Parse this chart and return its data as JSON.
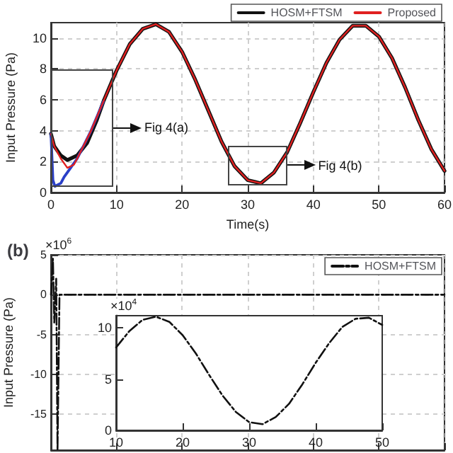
{
  "chart_data": [
    {
      "type": "line",
      "xlabel": "Time(s)",
      "ylabel": "Input Pressure (Pa)",
      "xlim": [
        0,
        60
      ],
      "ylim": [
        0,
        11
      ],
      "xticks": [
        0,
        10,
        20,
        30,
        40,
        50,
        60
      ],
      "yticks": [
        0,
        2,
        4,
        6,
        8,
        10
      ],
      "grid": true,
      "legend": "top right",
      "marker": "none",
      "line_style": "solid",
      "annotations": [
        "Fig 4(a)",
        "Fig 4(b)"
      ],
      "series": [
        {
          "name": "HOSM+FTSM",
          "color": "#111111",
          "x": [
            0,
            0.5,
            1.5,
            2.5,
            4,
            5.5,
            7,
            8,
            10,
            12,
            14,
            16,
            18,
            20,
            22,
            24,
            26,
            28,
            30,
            32,
            34,
            36,
            38,
            40,
            42,
            44,
            46,
            48,
            50,
            52,
            54,
            56,
            58,
            60
          ],
          "values": [
            3.8,
            3.0,
            2.4,
            2.1,
            2.4,
            3.2,
            4.7,
            5.9,
            7.9,
            9.6,
            10.6,
            10.9,
            10.4,
            9.1,
            7.3,
            5.3,
            3.3,
            1.7,
            0.8,
            0.6,
            1.3,
            2.6,
            4.5,
            6.5,
            8.4,
            9.9,
            10.8,
            10.8,
            10.1,
            8.7,
            6.8,
            4.7,
            2.8,
            1.4
          ]
        },
        {
          "color": "#2a3fc8",
          "x": [
            0,
            0.3,
            0.6,
            1.5,
            2,
            3,
            4,
            6,
            8
          ],
          "values": [
            3.8,
            0.8,
            0.4,
            0.6,
            1.0,
            1.6,
            2.2,
            3.9,
            5.9
          ]
        },
        {
          "name": "Proposed",
          "color": "#e02020",
          "x": [
            0,
            0.5,
            1.5,
            2.5,
            3.5,
            4,
            6,
            8,
            10,
            12,
            14,
            16,
            18,
            20,
            22,
            24,
            26,
            28,
            30,
            32,
            34,
            36,
            38,
            40,
            42,
            44,
            46,
            48,
            50,
            52,
            54,
            56,
            58,
            60
          ],
          "values": [
            3.8,
            3.0,
            2.2,
            1.6,
            1.8,
            2.2,
            3.9,
            5.9,
            7.9,
            9.6,
            10.6,
            10.9,
            10.4,
            9.1,
            7.3,
            5.3,
            3.3,
            1.7,
            0.8,
            0.6,
            1.3,
            2.6,
            4.5,
            6.5,
            8.4,
            9.9,
            10.8,
            10.8,
            10.1,
            8.7,
            6.8,
            4.7,
            2.8,
            1.4
          ]
        }
      ]
    },
    {
      "type": "line",
      "title": "(b)",
      "ylabel": "Input Pressure (Pa)",
      "xlim": [
        0,
        60
      ],
      "ylim": [
        -19.5,
        5
      ],
      "xticks": [
        0,
        10,
        20,
        30,
        40,
        50,
        60
      ],
      "yticks": [
        -15,
        -10,
        -5,
        0,
        5
      ],
      "grid": true,
      "legend": "top right",
      "marker": "none",
      "line_style": "dashed",
      "tick_labels": "y",
      "annotations": [
        "×10$^{6}$"
      ],
      "series": [
        {
          "name": "HOSM+FTSM",
          "color": "#111111",
          "x": [
            0,
            0.3,
            0.5,
            0.8,
            1.0,
            1.3,
            60
          ],
          "values": [
            0,
            4.5,
            -3.5,
            2,
            -19.5,
            0,
            0
          ]
        }
      ]
    },
    {
      "type": "line",
      "xlim": [
        10,
        50
      ],
      "ylim": [
        0,
        11.2
      ],
      "xticks": [
        10,
        20,
        30,
        40,
        50
      ],
      "yticks": [
        0,
        5,
        10
      ],
      "grid": false,
      "marker": "none",
      "line_style": "dashed",
      "annotations": [
        "×10$^{4}$"
      ],
      "series": [
        {
          "color": "#111111",
          "x": [
            10,
            12,
            14,
            16,
            18,
            20,
            22,
            24,
            26,
            28,
            30,
            32,
            34,
            36,
            38,
            40,
            42,
            44,
            46,
            48,
            50
          ],
          "values": [
            8.1,
            9.7,
            10.8,
            11.1,
            10.6,
            9.3,
            7.5,
            5.4,
            3.4,
            1.8,
            0.8,
            0.6,
            1.3,
            2.6,
            4.5,
            6.6,
            8.5,
            10.1,
            10.9,
            11.0,
            10.3
          ]
        }
      ]
    }
  ]
}
